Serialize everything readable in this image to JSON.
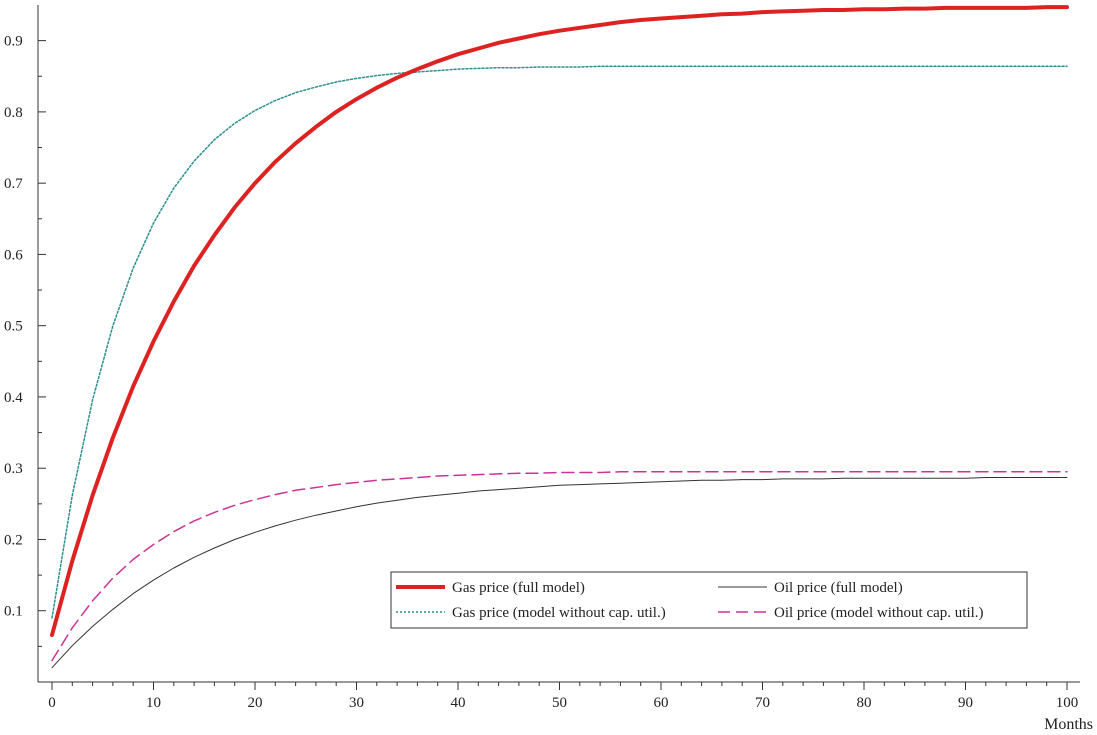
{
  "chart_data": {
    "type": "line",
    "title": "",
    "xlabel": "Months",
    "ylabel": "",
    "xlim": [
      0,
      100
    ],
    "ylim": [
      0,
      0.95
    ],
    "x_ticks": [
      "0",
      "10",
      "20",
      "30",
      "40",
      "50",
      "60",
      "70",
      "80",
      "90",
      "100"
    ],
    "y_ticks": [
      "0.1",
      "0.2",
      "0.3",
      "0.4",
      "0.5",
      "0.6",
      "0.7",
      "0.8",
      "0.9"
    ],
    "x": [
      0,
      2,
      4,
      6,
      8,
      10,
      12,
      14,
      16,
      18,
      20,
      22,
      24,
      26,
      28,
      30,
      32,
      34,
      36,
      38,
      40,
      42,
      44,
      46,
      48,
      50,
      52,
      54,
      56,
      58,
      60,
      62,
      64,
      66,
      68,
      70,
      72,
      74,
      76,
      78,
      80,
      82,
      84,
      86,
      88,
      90,
      92,
      94,
      96,
      98,
      100
    ],
    "grid": false,
    "legend_position": "bottom-right",
    "series": [
      {
        "name": "Gas price (full model)",
        "color": "#dd2222",
        "style": "solid-thick",
        "values": [
          0.066,
          0.17,
          0.262,
          0.343,
          0.415,
          0.478,
          0.534,
          0.584,
          0.627,
          0.666,
          0.7,
          0.73,
          0.756,
          0.779,
          0.8,
          0.818,
          0.834,
          0.848,
          0.86,
          0.871,
          0.881,
          0.889,
          0.897,
          0.903,
          0.909,
          0.914,
          0.918,
          0.922,
          0.926,
          0.929,
          0.931,
          0.933,
          0.935,
          0.937,
          0.938,
          0.94,
          0.941,
          0.942,
          0.943,
          0.943,
          0.944,
          0.944,
          0.945,
          0.945,
          0.946,
          0.946,
          0.946,
          0.946,
          0.946,
          0.947,
          0.947
        ]
      },
      {
        "name": "Gas price (model without cap. util.)",
        "color": "#2a8f8f",
        "style": "dotted",
        "values": [
          0.09,
          0.262,
          0.396,
          0.5,
          0.581,
          0.644,
          0.693,
          0.731,
          0.761,
          0.784,
          0.802,
          0.816,
          0.827,
          0.835,
          0.842,
          0.847,
          0.851,
          0.854,
          0.856,
          0.858,
          0.86,
          0.861,
          0.862,
          0.862,
          0.863,
          0.863,
          0.863,
          0.864,
          0.864,
          0.864,
          0.864,
          0.864,
          0.864,
          0.864,
          0.864,
          0.864,
          0.864,
          0.864,
          0.864,
          0.864,
          0.864,
          0.864,
          0.864,
          0.864,
          0.864,
          0.864,
          0.864,
          0.864,
          0.864,
          0.864,
          0.864
        ]
      },
      {
        "name": "Oil price (full model)",
        "color": "#333333",
        "style": "solid-thin",
        "values": [
          0.02,
          0.051,
          0.078,
          0.102,
          0.124,
          0.143,
          0.16,
          0.175,
          0.188,
          0.2,
          0.21,
          0.219,
          0.227,
          0.234,
          0.24,
          0.246,
          0.251,
          0.255,
          0.259,
          0.262,
          0.265,
          0.268,
          0.27,
          0.272,
          0.274,
          0.276,
          0.277,
          0.278,
          0.279,
          0.28,
          0.281,
          0.282,
          0.283,
          0.283,
          0.284,
          0.284,
          0.285,
          0.285,
          0.285,
          0.286,
          0.286,
          0.286,
          0.286,
          0.286,
          0.286,
          0.286,
          0.287,
          0.287,
          0.287,
          0.287,
          0.287
        ]
      },
      {
        "name": "Oil price (model without cap. util.)",
        "color": "#cc3399",
        "style": "dashed",
        "values": [
          0.03,
          0.076,
          0.114,
          0.146,
          0.172,
          0.193,
          0.211,
          0.226,
          0.238,
          0.248,
          0.256,
          0.263,
          0.269,
          0.273,
          0.277,
          0.28,
          0.283,
          0.285,
          0.287,
          0.289,
          0.29,
          0.291,
          0.292,
          0.293,
          0.293,
          0.294,
          0.294,
          0.294,
          0.295,
          0.295,
          0.295,
          0.295,
          0.295,
          0.295,
          0.295,
          0.295,
          0.295,
          0.295,
          0.295,
          0.295,
          0.295,
          0.295,
          0.295,
          0.295,
          0.295,
          0.295,
          0.295,
          0.295,
          0.295,
          0.295,
          0.295
        ]
      }
    ]
  }
}
